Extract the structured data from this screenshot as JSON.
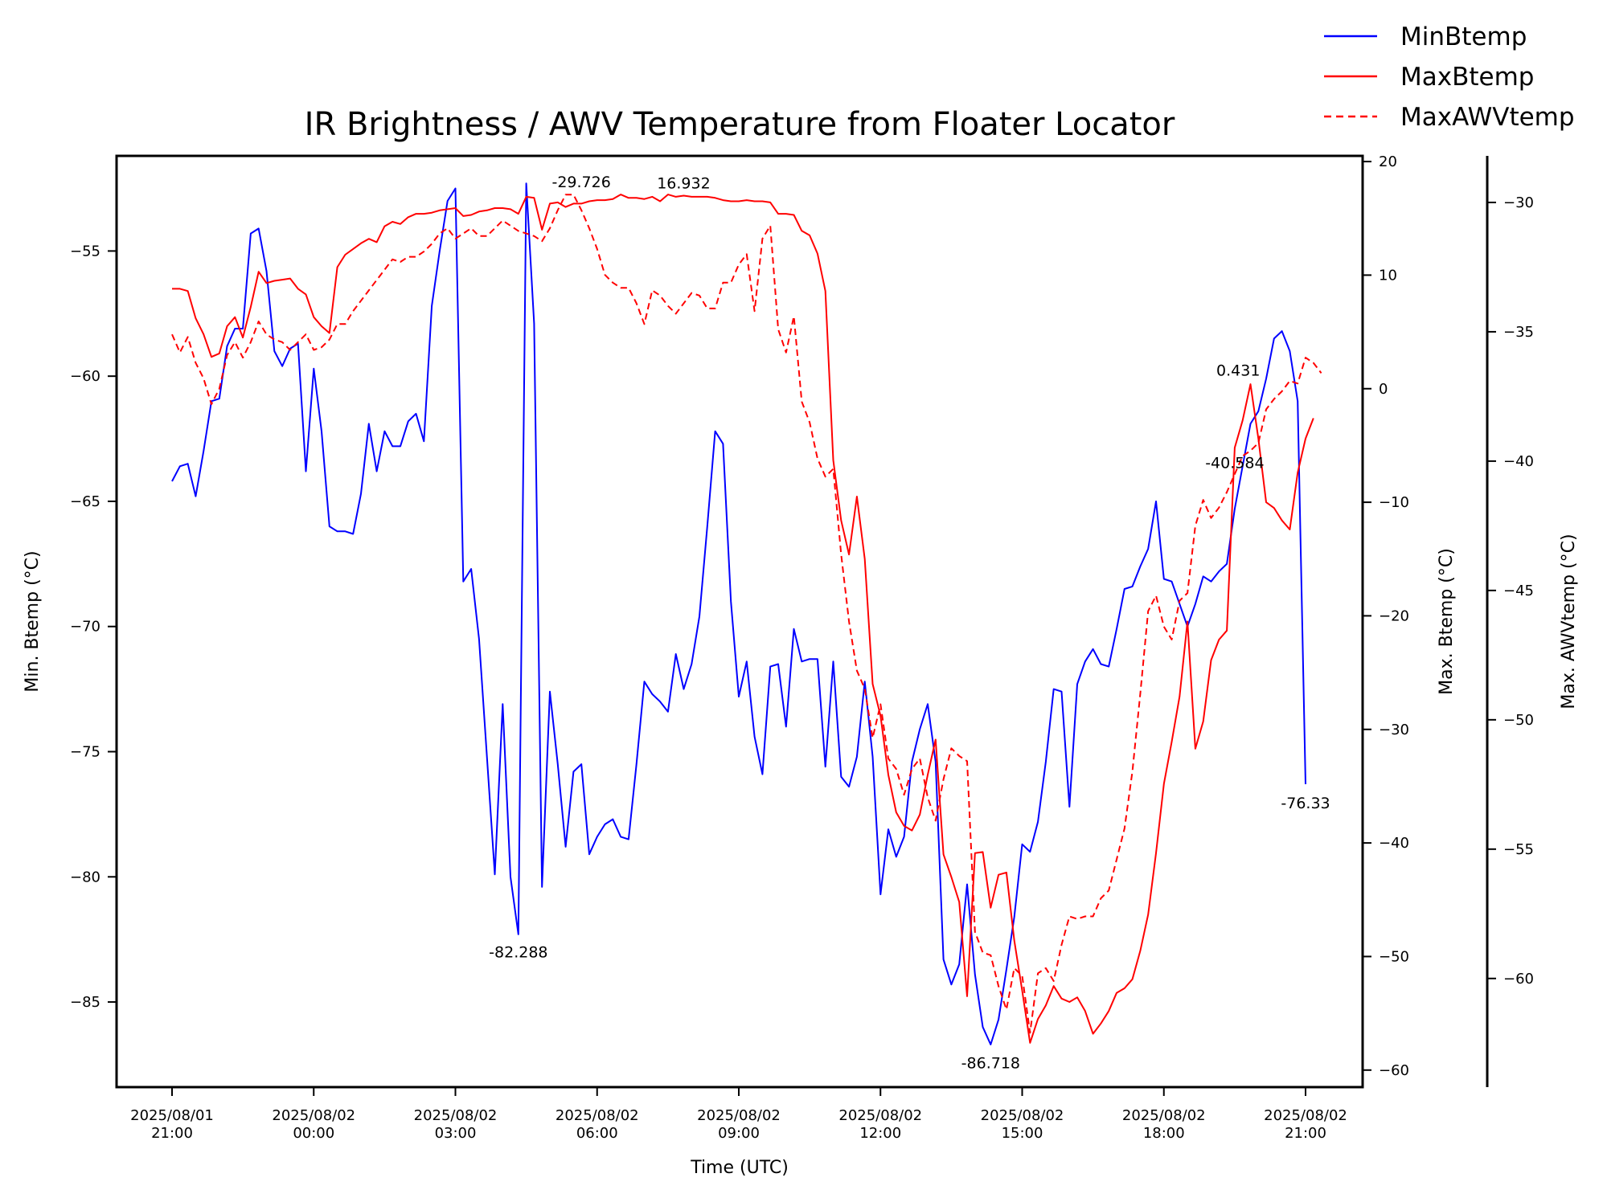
{
  "chart_data": {
    "type": "line",
    "title": "IR Brightness / AWV Temperature from Floater Locator",
    "xlabel": "Time (UTC)",
    "x_ticks": [
      {
        "t": "2025-08-01T21:00",
        "line1": "2025/08/01",
        "line2": "21:00"
      },
      {
        "t": "2025-08-02T00:00",
        "line1": "2025/08/02",
        "line2": "00:00"
      },
      {
        "t": "2025-08-02T03:00",
        "line1": "2025/08/02",
        "line2": "03:00"
      },
      {
        "t": "2025-08-02T06:00",
        "line1": "2025/08/02",
        "line2": "06:00"
      },
      {
        "t": "2025-08-02T09:00",
        "line1": "2025/08/02",
        "line2": "09:00"
      },
      {
        "t": "2025-08-02T12:00",
        "line1": "2025/08/02",
        "line2": "12:00"
      },
      {
        "t": "2025-08-02T15:00",
        "line1": "2025/08/02",
        "line2": "15:00"
      },
      {
        "t": "2025-08-02T18:00",
        "line1": "2025/08/02",
        "line2": "18:00"
      },
      {
        "t": "2025-08-02T21:00",
        "line1": "2025/08/02",
        "line2": "21:00"
      }
    ],
    "x_time_range": [
      "2025-08-01T21:00",
      "2025-08-02T21:00"
    ],
    "axes": [
      {
        "id": "min",
        "label": "Min. Btemp (°C)",
        "side": "left",
        "ylim": [
          -88.4,
          -51.2
        ],
        "ticks": [
          -55,
          -60,
          -65,
          -70,
          -75,
          -80,
          -85
        ]
      },
      {
        "id": "max",
        "label": "Max. Btemp (°C)",
        "side": "right",
        "ylim": [
          -61.5,
          20.5
        ],
        "ticks": [
          20,
          10,
          0,
          -10,
          -20,
          -30,
          -40,
          -50,
          -60
        ]
      },
      {
        "id": "awv",
        "label": "Max. AWVtemp (°C)",
        "side": "right-outer",
        "ylim": [
          -64.2,
          -28.2
        ],
        "ticks": [
          -30,
          -35,
          -40,
          -45,
          -50,
          -55,
          -60
        ]
      }
    ],
    "legend": {
      "position": "top-right"
    },
    "grid": false,
    "series": [
      {
        "name": "MinBtemp",
        "axis": "min",
        "color": "#0000ff",
        "style": "solid",
        "start": "2025-08-01T21:00",
        "step_minutes": 10,
        "values": [
          -64.2,
          -63.6,
          -63.5,
          -64.8,
          -63.0,
          -61.0,
          -60.9,
          -58.8,
          -58.1,
          -58.1,
          -54.3,
          -54.1,
          -55.8,
          -59.0,
          -59.6,
          -58.9,
          -58.7,
          -63.8,
          -59.7,
          -62.2,
          -66.0,
          -66.2,
          -66.2,
          -66.3,
          -64.7,
          -61.9,
          -63.8,
          -62.2,
          -62.8,
          -62.8,
          -61.8,
          -61.5,
          -62.6,
          -57.2,
          -55.0,
          -53.0,
          -52.5,
          -68.2,
          -67.7,
          -70.5,
          -75.2,
          -79.9,
          -73.1,
          -80.0,
          -82.3,
          -52.3,
          -57.9,
          -80.4,
          -72.6,
          -75.5,
          -78.8,
          -75.8,
          -75.5,
          -79.1,
          -78.4,
          -77.9,
          -77.7,
          -78.4,
          -78.5,
          -75.5,
          -72.2,
          -72.7,
          -73.0,
          -73.4,
          -71.1,
          -72.5,
          -71.5,
          -69.6,
          -66.0,
          -62.2,
          -62.7,
          -69.0,
          -72.8,
          -71.4,
          -74.4,
          -75.9,
          -71.6,
          -71.5,
          -74.0,
          -70.1,
          -71.4,
          -71.3,
          -71.3,
          -75.6,
          -71.4,
          -76.0,
          -76.4,
          -75.2,
          -72.2,
          -75.2,
          -80.7,
          -78.1,
          -79.2,
          -78.4,
          -75.4,
          -74.1,
          -73.1,
          -75.4,
          -83.3,
          -84.3,
          -83.5,
          -80.3,
          -83.9,
          -86.0,
          -86.7,
          -85.7,
          -83.7,
          -81.6,
          -78.7,
          -79.0,
          -77.8,
          -75.4,
          -72.5,
          -72.6,
          -77.2,
          -72.3,
          -71.4,
          -70.9,
          -71.5,
          -71.6,
          -70.1,
          -68.5,
          -68.4,
          -67.6,
          -66.9,
          -65.0,
          -68.1,
          -68.2,
          -69.1,
          -70.0,
          -69.1,
          -68.0,
          -68.2,
          -67.8,
          -67.5,
          -65.3,
          -63.6,
          -61.9,
          -61.4,
          -60.1,
          -58.5,
          -58.2,
          -59.0,
          -61.0,
          -76.3
        ]
      },
      {
        "name": "MaxBtemp",
        "axis": "max",
        "color": "#ff0000",
        "style": "solid",
        "start": "2025-08-01T21:00",
        "step_minutes": 10,
        "values": [
          8.8,
          8.8,
          8.6,
          6.2,
          4.8,
          2.8,
          3.1,
          5.5,
          6.3,
          4.5,
          7.2,
          10.3,
          9.3,
          9.5,
          9.6,
          9.7,
          8.8,
          8.3,
          6.3,
          5.5,
          4.9,
          10.7,
          11.8,
          12.3,
          12.8,
          13.2,
          12.9,
          14.3,
          14.7,
          14.5,
          15.1,
          15.4,
          15.4,
          15.5,
          15.7,
          15.8,
          15.9,
          15.2,
          15.3,
          15.6,
          15.7,
          15.9,
          15.9,
          15.8,
          15.4,
          16.9,
          16.8,
          14.0,
          16.3,
          16.4,
          16.0,
          16.3,
          16.3,
          16.5,
          16.6,
          16.6,
          16.7,
          17.1,
          16.8,
          16.8,
          16.7,
          16.9,
          16.5,
          17.1,
          16.9,
          17.0,
          16.9,
          16.9,
          16.9,
          16.8,
          16.6,
          16.5,
          16.5,
          16.6,
          16.5,
          16.5,
          16.4,
          15.4,
          15.4,
          15.3,
          13.9,
          13.5,
          11.9,
          8.6,
          -6.3,
          -11.6,
          -14.6,
          -9.5,
          -15.0,
          -26.0,
          -28.8,
          -34.0,
          -37.3,
          -38.5,
          -38.9,
          -37.5,
          -34.0,
          -30.9,
          -41.0,
          -43.0,
          -45.2,
          -53.5,
          -40.9,
          -40.8,
          -45.7,
          -42.8,
          -42.6,
          -48.6,
          -53.0,
          -57.6,
          -55.5,
          -54.3,
          -52.6,
          -53.7,
          -54.0,
          -53.6,
          -54.8,
          -56.8,
          -55.9,
          -54.8,
          -53.2,
          -52.8,
          -52.0,
          -49.5,
          -46.3,
          -40.9,
          -34.8,
          -31.1,
          -27.1,
          -20.5,
          -31.7,
          -29.3,
          -23.9,
          -22.1,
          -21.3,
          -5.2,
          -2.8,
          0.4,
          -4.4,
          -10.0,
          -10.5,
          -11.6,
          -12.4,
          -7.4,
          -4.4,
          -2.6
        ]
      },
      {
        "name": "MaxAWVtemp",
        "axis": "awv",
        "color": "#ff0000",
        "style": "dashed",
        "start": "2025-08-01T21:00",
        "step_minutes": 10,
        "values": [
          -35.1,
          -35.8,
          -35.2,
          -36.2,
          -36.8,
          -37.8,
          -37.2,
          -35.9,
          -35.4,
          -36.0,
          -35.4,
          -34.6,
          -35.1,
          -35.3,
          -35.4,
          -35.7,
          -35.4,
          -35.1,
          -35.7,
          -35.6,
          -35.3,
          -34.7,
          -34.7,
          -34.2,
          -33.8,
          -33.4,
          -33.0,
          -32.6,
          -32.2,
          -32.3,
          -32.1,
          -32.1,
          -31.9,
          -31.6,
          -31.2,
          -31.0,
          -31.4,
          -31.2,
          -31.0,
          -31.3,
          -31.3,
          -31.0,
          -30.7,
          -30.9,
          -31.1,
          -31.2,
          -31.3,
          -31.5,
          -31.0,
          -30.3,
          -29.7,
          -29.7,
          -30.3,
          -31.0,
          -31.8,
          -32.8,
          -33.1,
          -33.3,
          -33.3,
          -33.9,
          -34.7,
          -33.4,
          -33.6,
          -34.0,
          -34.3,
          -33.9,
          -33.5,
          -33.6,
          -34.1,
          -34.1,
          -33.1,
          -33.1,
          -32.4,
          -32.0,
          -34.2,
          -31.4,
          -30.9,
          -34.9,
          -35.8,
          -34.4,
          -37.7,
          -38.5,
          -39.9,
          -40.6,
          -40.3,
          -43.6,
          -46.2,
          -48.1,
          -48.8,
          -50.7,
          -49.4,
          -51.5,
          -51.9,
          -52.9,
          -51.9,
          -51.5,
          -53.0,
          -53.9,
          -52.3,
          -51.1,
          -51.4,
          -51.6,
          -58.2,
          -59.0,
          -59.1,
          -60.3,
          -61.2,
          -59.6,
          -59.9,
          -62.1,
          -59.8,
          -59.6,
          -60.1,
          -58.7,
          -57.6,
          -57.7,
          -57.6,
          -57.6,
          -56.9,
          -56.6,
          -55.4,
          -54.2,
          -52.0,
          -49.0,
          -45.8,
          -45.2,
          -46.4,
          -46.9,
          -45.4,
          -45.1,
          -42.5,
          -41.5,
          -42.2,
          -41.8,
          -41.2,
          -40.5,
          -39.8,
          -39.6,
          -39.3,
          -38.0,
          -37.6,
          -37.3,
          -36.9,
          -37.0,
          -36.0,
          -36.2,
          -36.6
        ]
      }
    ],
    "annotations": [
      {
        "text": "-29.726",
        "axis": "awv",
        "t": "2025-08-02T05:40",
        "y": -29.726,
        "anchor": "middle",
        "offset": "above"
      },
      {
        "text": "16.932",
        "axis": "max",
        "t": "2025-08-02T07:50",
        "y": 16.932,
        "anchor": "middle",
        "offset": "above"
      },
      {
        "text": "-82.288",
        "axis": "min",
        "t": "2025-08-02T04:20",
        "y": -82.288,
        "anchor": "middle",
        "offset": "below"
      },
      {
        "text": "-86.718",
        "axis": "min",
        "t": "2025-08-02T14:20",
        "y": -86.718,
        "anchor": "middle",
        "offset": "below"
      },
      {
        "text": "0.431",
        "axis": "max",
        "t": "2025-08-02T19:50",
        "y": 0.431,
        "anchor": "end",
        "offset": "above"
      },
      {
        "text": "-40.584",
        "axis": "awv",
        "t": "2025-08-02T19:30",
        "y": -40.584,
        "anchor": "middle",
        "offset": "above"
      },
      {
        "text": "-76.33",
        "axis": "min",
        "t": "2025-08-02T21:00",
        "y": -76.33,
        "anchor": "middle",
        "offset": "below"
      }
    ]
  }
}
